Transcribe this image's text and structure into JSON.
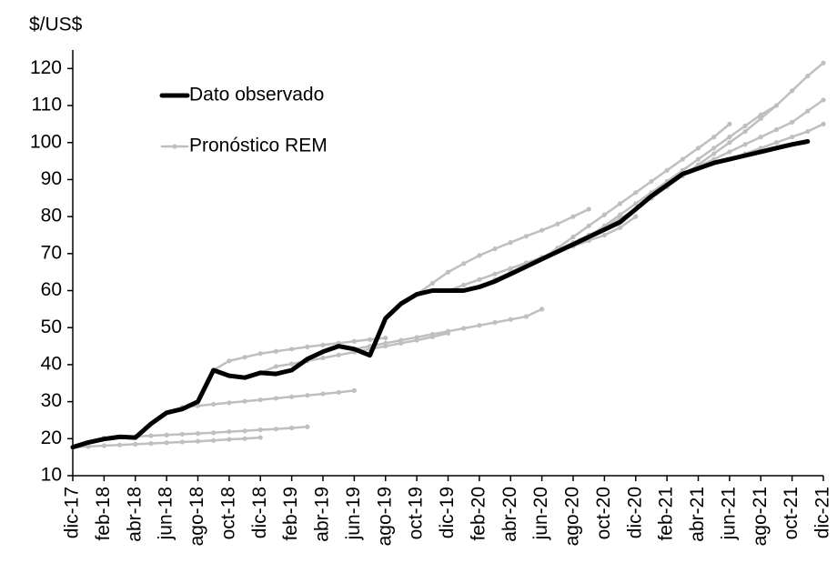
{
  "chart_data": {
    "type": "line",
    "y_label": "$/US$",
    "categories": [
      "dic-17",
      null,
      "feb-18",
      null,
      "abr-18",
      null,
      "jun-18",
      null,
      "ago-18",
      null,
      "oct-18",
      null,
      "dic-18",
      null,
      "feb-19",
      null,
      "abr-19",
      null,
      "jun-19",
      null,
      "ago-19",
      null,
      "oct-19",
      null,
      "dic-19",
      null,
      "feb-20",
      null,
      "abr-20",
      null,
      "jun-20",
      null,
      "ago-20",
      null,
      "oct-20",
      null,
      "dic-20",
      null,
      "feb-21",
      null,
      "abr-21",
      null,
      "jun-21",
      null,
      "ago-21",
      null,
      "oct-21",
      null,
      "dic-21"
    ],
    "ylim": [
      10,
      125
    ],
    "yticks": [
      10,
      20,
      30,
      40,
      50,
      60,
      70,
      80,
      90,
      100,
      110,
      120
    ],
    "series": [
      {
        "name": "Dato observado",
        "color": "#000000",
        "values": [
          17.7,
          19,
          19.9,
          20.5,
          20.3,
          24,
          27,
          28,
          30,
          38.5,
          37,
          36.5,
          37.8,
          37.5,
          38.5,
          41.5,
          43.5,
          45,
          44.2,
          42.5,
          52.5,
          56.5,
          59,
          60,
          60,
          60,
          61,
          62.5,
          64.5,
          66.5,
          68.5,
          70.5,
          72.5,
          74.5,
          76.5,
          78.5,
          82,
          85.5,
          88.5,
          91.5,
          93,
          94.5,
          95.5,
          96.5,
          97.5,
          98.5,
          99.5,
          100.3,
          null
        ]
      },
      {
        "name": "Pronóstico REM",
        "color": "#bfbfbf",
        "values": [
          17.7,
          17.9,
          18.1,
          18.3,
          18.5,
          18.7,
          18.9,
          19.1,
          19.3,
          19.5,
          19.8,
          20.0,
          20.3,
          null,
          null,
          null,
          null,
          null,
          null,
          null,
          null,
          null,
          null,
          null,
          null,
          null,
          null,
          null,
          null,
          null,
          null,
          null,
          null,
          null,
          null,
          null,
          null,
          null,
          null,
          null,
          null,
          null,
          null,
          null,
          null,
          null,
          null,
          null,
          null
        ]
      },
      {
        "color": "#bfbfbf",
        "values": [
          null,
          null,
          20.2,
          20.4,
          20.6,
          20.8,
          21.0,
          21.2,
          21.4,
          21.6,
          21.9,
          22.1,
          22.4,
          22.6,
          22.9,
          23.2,
          null,
          null,
          null,
          null,
          null,
          null,
          null,
          null,
          null,
          null,
          null,
          null,
          null,
          null,
          null,
          null,
          null,
          null,
          null,
          null,
          null,
          null,
          null,
          null,
          null,
          null,
          null,
          null,
          null,
          null,
          null,
          null,
          null
        ]
      },
      {
        "color": "#bfbfbf",
        "values": [
          null,
          null,
          null,
          null,
          null,
          null,
          null,
          28.5,
          28.9,
          29.3,
          29.7,
          30.1,
          30.5,
          30.9,
          31.3,
          31.7,
          32.1,
          32.5,
          33,
          null,
          null,
          null,
          null,
          null,
          null,
          null,
          null,
          null,
          null,
          null,
          null,
          null,
          null,
          null,
          null,
          null,
          null,
          null,
          null,
          null,
          null,
          null,
          null,
          null,
          null,
          null,
          null,
          null,
          null
        ]
      },
      {
        "color": "#bfbfbf",
        "values": [
          null,
          null,
          null,
          null,
          null,
          null,
          null,
          null,
          null,
          38.5,
          41,
          42,
          43,
          43.6,
          44.2,
          44.8,
          45.3,
          45.8,
          46.3,
          46.8,
          47.2,
          null,
          null,
          null,
          null,
          null,
          null,
          null,
          null,
          null,
          null,
          null,
          null,
          null,
          null,
          null,
          null,
          null,
          null,
          null,
          null,
          null,
          null,
          null,
          null,
          null,
          null,
          null,
          null
        ]
      },
      {
        "color": "#bfbfbf",
        "values": [
          null,
          null,
          null,
          null,
          null,
          null,
          null,
          null,
          null,
          null,
          null,
          null,
          37.8,
          39.5,
          40.2,
          41,
          41.8,
          42.6,
          43.4,
          44.2,
          45,
          45.8,
          46.6,
          47.5,
          48.5,
          null,
          null,
          null,
          null,
          null,
          null,
          null,
          null,
          null,
          null,
          null,
          null,
          null,
          null,
          null,
          null,
          null,
          null,
          null,
          null,
          null,
          null,
          null,
          null
        ]
      },
      {
        "color": "#bfbfbf",
        "values": [
          null,
          null,
          null,
          null,
          null,
          null,
          null,
          null,
          null,
          null,
          null,
          null,
          null,
          null,
          null,
          null,
          null,
          null,
          44.2,
          45,
          45.8,
          46.6,
          47.4,
          48.2,
          49,
          49.8,
          50.6,
          51.4,
          52.2,
          53,
          55,
          null,
          null,
          null,
          null,
          null,
          null,
          null,
          null,
          null,
          null,
          null,
          null,
          null,
          null,
          null,
          null,
          null,
          null
        ]
      },
      {
        "color": "#bfbfbf",
        "values": [
          null,
          null,
          null,
          null,
          null,
          null,
          null,
          null,
          null,
          null,
          null,
          null,
          null,
          null,
          null,
          null,
          null,
          null,
          null,
          null,
          null,
          null,
          59,
          62,
          65,
          67.3,
          69.5,
          71.3,
          73,
          74.7,
          76.3,
          78,
          80,
          82,
          null,
          null,
          null,
          null,
          null,
          null,
          null,
          null,
          null,
          null,
          null,
          null,
          null,
          null,
          null
        ]
      },
      {
        "color": "#bfbfbf",
        "values": [
          null,
          null,
          null,
          null,
          null,
          null,
          null,
          null,
          null,
          null,
          null,
          null,
          null,
          null,
          null,
          null,
          null,
          null,
          null,
          null,
          null,
          null,
          null,
          null,
          60,
          61.5,
          63,
          64.5,
          66,
          67.5,
          69,
          70.5,
          72,
          73.5,
          75,
          77,
          80,
          null,
          null,
          null,
          null,
          null,
          null,
          null,
          null,
          null,
          null,
          null,
          null
        ]
      },
      {
        "color": "#bfbfbf",
        "values": [
          null,
          null,
          null,
          null,
          null,
          null,
          null,
          null,
          null,
          null,
          null,
          null,
          null,
          null,
          null,
          null,
          null,
          null,
          null,
          null,
          null,
          null,
          null,
          null,
          null,
          null,
          61,
          63,
          65,
          67,
          69,
          71,
          73,
          75,
          77,
          79.5,
          82,
          85,
          88,
          null,
          null,
          null,
          null,
          null,
          null,
          null,
          null,
          null,
          null
        ]
      },
      {
        "color": "#bfbfbf",
        "values": [
          null,
          null,
          null,
          null,
          null,
          null,
          null,
          null,
          null,
          null,
          null,
          null,
          null,
          null,
          null,
          null,
          null,
          null,
          null,
          null,
          null,
          null,
          null,
          null,
          null,
          null,
          null,
          null,
          null,
          null,
          68.5,
          71.5,
          74.5,
          77.5,
          80.5,
          83.5,
          86.5,
          89.5,
          92.5,
          95.5,
          98.5,
          101.5,
          105,
          null,
          null,
          null,
          null,
          null,
          null
        ]
      },
      {
        "color": "#bfbfbf",
        "values": [
          null,
          null,
          null,
          null,
          null,
          null,
          null,
          null,
          null,
          null,
          null,
          null,
          null,
          null,
          null,
          null,
          null,
          null,
          null,
          null,
          null,
          null,
          null,
          null,
          null,
          null,
          null,
          null,
          null,
          null,
          null,
          null,
          null,
          74.5,
          77.5,
          80.5,
          83.5,
          86.5,
          89.5,
          92.5,
          95.5,
          98.5,
          101.5,
          104.5,
          107.5,
          110,
          null,
          null,
          null
        ]
      },
      {
        "color": "#bfbfbf",
        "values": [
          null,
          null,
          null,
          null,
          null,
          null,
          null,
          null,
          null,
          null,
          null,
          null,
          null,
          null,
          null,
          null,
          null,
          null,
          null,
          null,
          null,
          null,
          null,
          null,
          null,
          null,
          null,
          null,
          null,
          null,
          null,
          null,
          null,
          null,
          null,
          null,
          82,
          85,
          88,
          91,
          94,
          97,
          100,
          103,
          106.5,
          110,
          114,
          118,
          121.5
        ]
      },
      {
        "color": "#bfbfbf",
        "values": [
          null,
          null,
          null,
          null,
          null,
          null,
          null,
          null,
          null,
          null,
          null,
          null,
          null,
          null,
          null,
          null,
          null,
          null,
          null,
          null,
          null,
          null,
          null,
          null,
          null,
          null,
          null,
          null,
          null,
          null,
          null,
          null,
          null,
          null,
          null,
          null,
          null,
          null,
          null,
          91.5,
          93.5,
          95.5,
          97.5,
          99.5,
          101.5,
          103.5,
          105.5,
          108.5,
          111.5
        ]
      },
      {
        "color": "#bfbfbf",
        "values": [
          null,
          null,
          null,
          null,
          null,
          null,
          null,
          null,
          null,
          null,
          null,
          null,
          null,
          null,
          null,
          null,
          null,
          null,
          null,
          null,
          null,
          null,
          null,
          null,
          null,
          null,
          null,
          null,
          null,
          null,
          null,
          null,
          null,
          null,
          null,
          null,
          null,
          null,
          null,
          null,
          null,
          null,
          95.5,
          97,
          98.5,
          100,
          101.5,
          103,
          105
        ]
      }
    ]
  }
}
